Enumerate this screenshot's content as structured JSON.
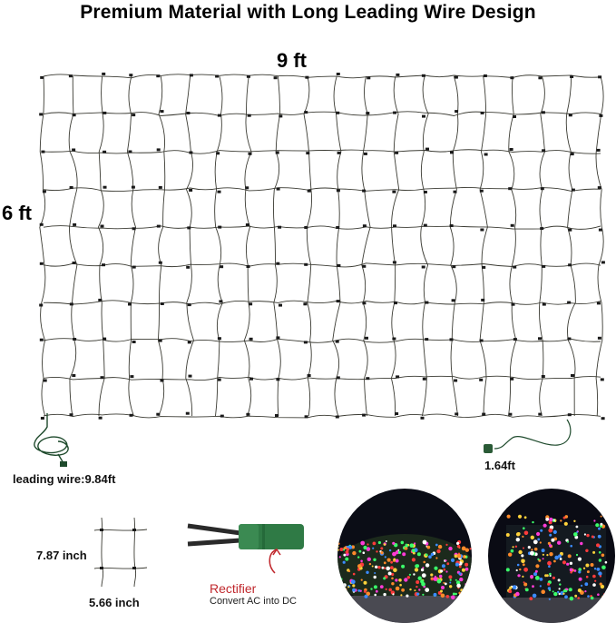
{
  "header": {
    "title": "Premium Material with Long Leading Wire Design"
  },
  "dimensions": {
    "width": "9 ft",
    "height": "6 ft"
  },
  "wires": {
    "leading": "leading wire:9.84ft",
    "end": "1.64ft"
  },
  "grid_cell": {
    "height": "7.87 inch",
    "width": "5.66 inch"
  },
  "rectifier": {
    "title": "Rectifier",
    "subtitle": "Convert AC into DC"
  },
  "colors": {
    "wire": "#3a3a32",
    "rectifier_body": "#2f7a45",
    "rectifier_text": "#c0282d"
  },
  "icons": {
    "rectifier": "rectifier-icon",
    "photo_hedge": "hedge-lights-photo",
    "photo_net": "net-lights-photo"
  }
}
